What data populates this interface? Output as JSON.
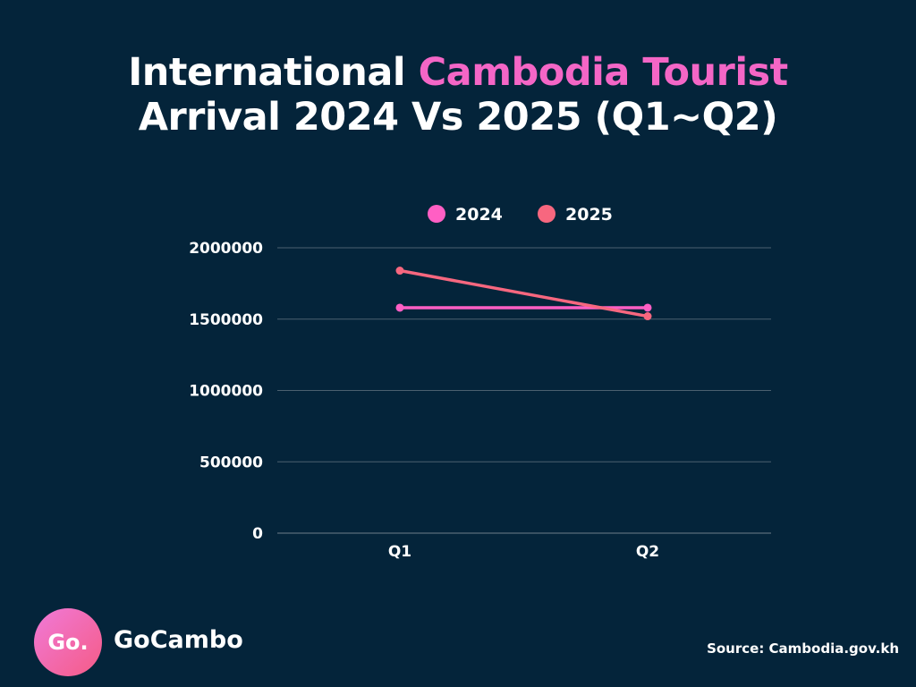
{
  "title": {
    "prefix": "International ",
    "highlight": "Cambodia Tourist",
    "line2": "Arrival 2024 Vs 2025 (Q1~Q2)"
  },
  "colors": {
    "background": "#04243a",
    "highlight": "#f466c6",
    "series_2024": "#ff5fc4",
    "series_2025": "#f7677f",
    "gridline": "#4b6070"
  },
  "chart_data": {
    "type": "line",
    "categories": [
      "Q1",
      "Q2"
    ],
    "series": [
      {
        "name": "2024",
        "values": [
          1580000,
          1580000
        ]
      },
      {
        "name": "2025",
        "values": [
          1840000,
          1520000
        ]
      }
    ],
    "ylim": [
      0,
      2000000
    ],
    "yticks": [
      "0",
      "500000",
      "1000000",
      "1500000",
      "2000000"
    ],
    "grid": true,
    "legend_position": "top"
  },
  "brand": {
    "logo_text": "Go.",
    "name": "GoCambo"
  },
  "source": "Source: Cambodia.gov.kh"
}
